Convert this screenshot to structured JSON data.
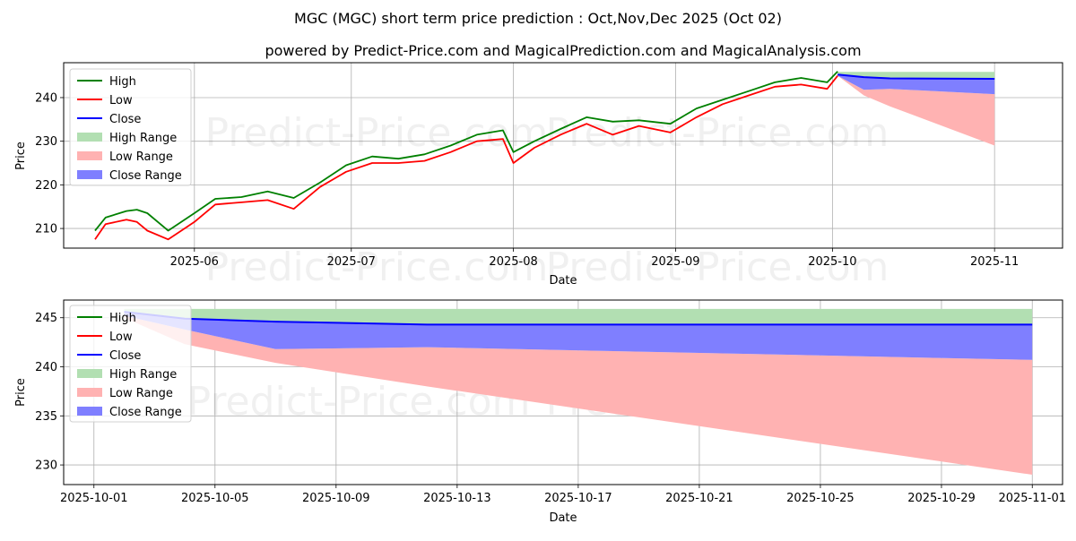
{
  "title": "MGC (MGC) short term price prediction : Oct,Nov,Dec 2025 (Oct 02)",
  "subtitle": "powered by Predict-Price.com and MagicalPrediction.com and MagicalAnalysis.com",
  "watermark": "Predict-Price.com",
  "colors": {
    "high": "#008000",
    "low": "#ff0000",
    "close": "#0000ff",
    "high_range": "#b2dfb2",
    "low_range": "#ffb2b2",
    "close_range": "#7f7fff",
    "grid": "#b0b0b0"
  },
  "legend": {
    "items": [
      {
        "label": "High",
        "kind": "line",
        "color": "#008000"
      },
      {
        "label": "Low",
        "kind": "line",
        "color": "#ff0000"
      },
      {
        "label": "Close",
        "kind": "line",
        "color": "#0000ff"
      },
      {
        "label": "High Range",
        "kind": "patch",
        "color": "#b2dfb2"
      },
      {
        "label": "Low Range",
        "kind": "patch",
        "color": "#ffb2b2"
      },
      {
        "label": "Close Range",
        "kind": "patch",
        "color": "#7f7fff"
      }
    ]
  },
  "chart_data": [
    {
      "type": "line",
      "title": "MGC (MGC) short term price prediction : Oct,Nov,Dec 2025 (Oct 02)",
      "xlabel": "Date",
      "ylabel": "Price",
      "ylim": [
        205.5,
        248
      ],
      "yticks": [
        210,
        220,
        230,
        240
      ],
      "xticks": [
        "2025-06",
        "2025-07",
        "2025-08",
        "2025-09",
        "2025-10",
        "2025-11"
      ],
      "grid": true,
      "legend_position": "upper left",
      "x": [
        "2025-05-13",
        "2025-05-15",
        "2025-05-19",
        "2025-05-21",
        "2025-05-23",
        "2025-05-27",
        "2025-06-01",
        "2025-06-05",
        "2025-06-10",
        "2025-06-15",
        "2025-06-20",
        "2025-06-25",
        "2025-06-30",
        "2025-07-05",
        "2025-07-10",
        "2025-07-15",
        "2025-07-20",
        "2025-07-25",
        "2025-07-30",
        "2025-08-01",
        "2025-08-05",
        "2025-08-10",
        "2025-08-15",
        "2025-08-20",
        "2025-08-25",
        "2025-08-31",
        "2025-09-05",
        "2025-09-10",
        "2025-09-15",
        "2025-09-20",
        "2025-09-25",
        "2025-09-30",
        "2025-10-02"
      ],
      "series": [
        {
          "name": "High",
          "values": [
            209.5,
            212.5,
            214.0,
            214.3,
            213.5,
            209.5,
            213.5,
            216.8,
            217.2,
            218.5,
            217.0,
            220.5,
            224.5,
            226.5,
            226.0,
            227.0,
            229.0,
            231.5,
            232.5,
            227.5,
            230.0,
            232.8,
            235.5,
            234.5,
            234.8,
            234.0,
            237.5,
            239.5,
            241.5,
            243.5,
            244.5,
            243.5,
            246.0
          ]
        },
        {
          "name": "Low",
          "values": [
            207.5,
            211.0,
            212.0,
            211.5,
            209.5,
            207.5,
            211.5,
            215.5,
            216.0,
            216.5,
            214.5,
            219.5,
            223.0,
            225.0,
            225.0,
            225.5,
            227.5,
            230.0,
            230.5,
            225.0,
            228.5,
            231.5,
            234.0,
            231.5,
            233.5,
            232.0,
            235.5,
            238.5,
            240.5,
            242.5,
            243.0,
            242.0,
            245.0
          ]
        }
      ],
      "forecast": {
        "x": [
          "2025-10-02",
          "2025-10-07",
          "2025-10-12",
          "2025-11-01"
        ],
        "high_range_upper": [
          245.9,
          245.9,
          245.9,
          245.9
        ],
        "high_range_lower": [
          245.2,
          244.7,
          244.4,
          244.3
        ],
        "close": [
          245.3,
          244.7,
          244.4,
          244.3
        ],
        "close_range_lower": [
          245.0,
          241.8,
          242.0,
          240.8
        ],
        "low_range_lower": [
          245.0,
          240.5,
          238.0,
          229.0
        ]
      }
    },
    {
      "type": "area",
      "title": "",
      "xlabel": "Date",
      "ylabel": "Price",
      "ylim": [
        228,
        246.8
      ],
      "yticks": [
        230,
        235,
        240,
        245
      ],
      "xticks": [
        "2025-10-01",
        "2025-10-05",
        "2025-10-09",
        "2025-10-13",
        "2025-10-17",
        "2025-10-21",
        "2025-10-25",
        "2025-10-29",
        "2025-11-01"
      ],
      "grid": true,
      "legend_position": "upper left",
      "x": [
        "2025-10-02",
        "2025-10-04",
        "2025-10-07",
        "2025-10-12",
        "2025-11-01"
      ],
      "series": [
        {
          "name": "Close",
          "values": [
            245.6,
            244.9,
            244.6,
            244.3,
            244.3
          ]
        },
        {
          "name": "High Range upper",
          "values": [
            245.9,
            245.9,
            245.9,
            245.9,
            245.9
          ]
        },
        {
          "name": "High Range lower",
          "values": [
            245.6,
            244.9,
            244.6,
            244.3,
            244.3
          ]
        },
        {
          "name": "Close Range lower",
          "values": [
            245.2,
            243.8,
            241.8,
            242.0,
            240.7
          ]
        },
        {
          "name": "Low Range lower",
          "values": [
            245.0,
            242.3,
            240.4,
            238.0,
            229.0
          ]
        }
      ]
    }
  ]
}
